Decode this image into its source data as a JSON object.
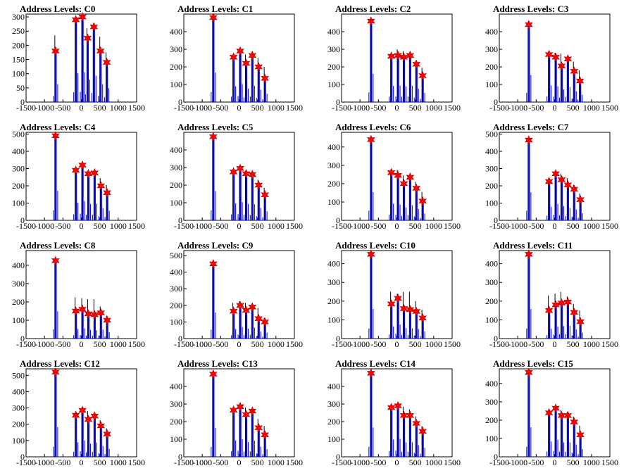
{
  "figure": {
    "title_prefix": "Address Levels: "
  },
  "style": {
    "series_color": "#0000ff",
    "outline_color": "#000000",
    "marker_color": "#ff0000"
  },
  "chart_data": [
    {
      "title": "Address Levels: C0",
      "type": "bar",
      "xlim": [
        -1500,
        1500
      ],
      "ylim": [
        0,
        310
      ],
      "xticks": [
        -1500,
        -1000,
        -500,
        0,
        500,
        1000,
        1500
      ],
      "yticks": [
        0,
        50,
        100,
        150,
        200,
        250,
        300
      ],
      "ytick_labels": [
        "0",
        "50",
        "100",
        "150",
        "200",
        "250",
        "300"
      ],
      "peaks": [
        {
          "x": -700,
          "y": 235,
          "marker": 180
        },
        {
          "x": -150,
          "y": 290,
          "marker": 290
        },
        {
          "x": 30,
          "y": 305,
          "marker": 300
        },
        {
          "x": 170,
          "y": 260,
          "marker": 225
        },
        {
          "x": 340,
          "y": 255,
          "marker": 265
        },
        {
          "x": 520,
          "y": 230,
          "marker": 180
        },
        {
          "x": 690,
          "y": 175,
          "marker": 140
        }
      ]
    },
    {
      "title": "Address Levels: C1",
      "type": "bar",
      "xlim": [
        -1500,
        1500
      ],
      "ylim": [
        0,
        500
      ],
      "xticks": [
        -1500,
        -1000,
        -500,
        0,
        500,
        1000,
        1500
      ],
      "yticks": [
        0,
        100,
        200,
        300,
        400
      ],
      "ytick_labels": [
        "0",
        "100",
        "200",
        "300",
        "400"
      ],
      "peaks": [
        {
          "x": -700,
          "y": 480,
          "marker": 480
        },
        {
          "x": -150,
          "y": 260,
          "marker": 255
        },
        {
          "x": 30,
          "y": 295,
          "marker": 290
        },
        {
          "x": 190,
          "y": 270,
          "marker": 220
        },
        {
          "x": 360,
          "y": 265,
          "marker": 265
        },
        {
          "x": 530,
          "y": 250,
          "marker": 200
        },
        {
          "x": 700,
          "y": 200,
          "marker": 135
        }
      ]
    },
    {
      "title": "Address Levels: C2",
      "type": "bar",
      "xlim": [
        -1500,
        1500
      ],
      "ylim": [
        0,
        500
      ],
      "xticks": [
        -1500,
        -1000,
        -500,
        0,
        500,
        1000,
        1500
      ],
      "yticks": [
        0,
        100,
        200,
        300,
        400
      ],
      "ytick_labels": [
        "0",
        "100",
        "200",
        "300",
        "400"
      ],
      "peaks": [
        {
          "x": -700,
          "y": 460,
          "marker": 460
        },
        {
          "x": -150,
          "y": 270,
          "marker": 260
        },
        {
          "x": 30,
          "y": 300,
          "marker": 265
        },
        {
          "x": 190,
          "y": 290,
          "marker": 255
        },
        {
          "x": 360,
          "y": 275,
          "marker": 265
        },
        {
          "x": 530,
          "y": 235,
          "marker": 215
        },
        {
          "x": 700,
          "y": 195,
          "marker": 150
        }
      ]
    },
    {
      "title": "Address Levels: C3",
      "type": "bar",
      "xlim": [
        -1500,
        1500
      ],
      "ylim": [
        0,
        500
      ],
      "xticks": [
        -1500,
        -1000,
        -500,
        0,
        500,
        1000,
        1500
      ],
      "yticks": [
        0,
        100,
        200,
        300,
        400
      ],
      "ytick_labels": [
        "0",
        "100",
        "200",
        "300",
        "400"
      ],
      "peaks": [
        {
          "x": -700,
          "y": 440,
          "marker": 440
        },
        {
          "x": -150,
          "y": 275,
          "marker": 270
        },
        {
          "x": 30,
          "y": 280,
          "marker": 255
        },
        {
          "x": 190,
          "y": 275,
          "marker": 205
        },
        {
          "x": 360,
          "y": 255,
          "marker": 245
        },
        {
          "x": 530,
          "y": 230,
          "marker": 175
        },
        {
          "x": 690,
          "y": 180,
          "marker": 120
        }
      ]
    },
    {
      "title": "Address Levels: C4",
      "type": "bar",
      "xlim": [
        -1500,
        1500
      ],
      "ylim": [
        0,
        510
      ],
      "xticks": [
        -1500,
        -1000,
        -500,
        0,
        500,
        1000,
        1500
      ],
      "yticks": [
        0,
        100,
        200,
        300,
        400,
        500
      ],
      "ytick_labels": [
        "0",
        "100",
        "200",
        "300",
        "400",
        "500"
      ],
      "peaks": [
        {
          "x": -700,
          "y": 490,
          "marker": 490
        },
        {
          "x": -150,
          "y": 290,
          "marker": 290
        },
        {
          "x": 30,
          "y": 325,
          "marker": 320
        },
        {
          "x": 190,
          "y": 280,
          "marker": 270
        },
        {
          "x": 360,
          "y": 285,
          "marker": 275
        },
        {
          "x": 530,
          "y": 245,
          "marker": 200
        },
        {
          "x": 700,
          "y": 205,
          "marker": 160
        }
      ]
    },
    {
      "title": "Address Levels: C5",
      "type": "bar",
      "xlim": [
        -1500,
        1500
      ],
      "ylim": [
        0,
        500
      ],
      "xticks": [
        -1500,
        -1000,
        -500,
        0,
        500,
        1000,
        1500
      ],
      "yticks": [
        0,
        100,
        200,
        300,
        400
      ],
      "ytick_labels": [
        "0",
        "100",
        "200",
        "300",
        "400"
      ],
      "peaks": [
        {
          "x": -700,
          "y": 475,
          "marker": 475
        },
        {
          "x": -150,
          "y": 285,
          "marker": 275
        },
        {
          "x": 30,
          "y": 305,
          "marker": 295
        },
        {
          "x": 190,
          "y": 275,
          "marker": 265
        },
        {
          "x": 360,
          "y": 275,
          "marker": 260
        },
        {
          "x": 530,
          "y": 230,
          "marker": 200
        },
        {
          "x": 700,
          "y": 185,
          "marker": 145
        }
      ]
    },
    {
      "title": "Address Levels: C6",
      "type": "bar",
      "xlim": [
        -1500,
        1500
      ],
      "ylim": [
        0,
        480
      ],
      "xticks": [
        -1500,
        -1000,
        -500,
        0,
        500,
        1000,
        1500
      ],
      "yticks": [
        0,
        100,
        200,
        300,
        400
      ],
      "ytick_labels": [
        "0",
        "100",
        "200",
        "300",
        "400"
      ],
      "peaks": [
        {
          "x": -700,
          "y": 440,
          "marker": 440
        },
        {
          "x": -150,
          "y": 265,
          "marker": 260
        },
        {
          "x": 30,
          "y": 275,
          "marker": 245
        },
        {
          "x": 190,
          "y": 245,
          "marker": 200
        },
        {
          "x": 360,
          "y": 245,
          "marker": 235
        },
        {
          "x": 530,
          "y": 210,
          "marker": 175
        },
        {
          "x": 700,
          "y": 155,
          "marker": 105
        }
      ]
    },
    {
      "title": "Address Levels: C7",
      "type": "bar",
      "xlim": [
        -1500,
        1500
      ],
      "ylim": [
        0,
        510
      ],
      "xticks": [
        -1500,
        -1000,
        -500,
        0,
        500,
        1000,
        1500
      ],
      "yticks": [
        0,
        100,
        200,
        300,
        400,
        500
      ],
      "ytick_labels": [
        "0",
        "100",
        "200",
        "300",
        "400",
        "500"
      ],
      "peaks": [
        {
          "x": -700,
          "y": 465,
          "marker": 465
        },
        {
          "x": -150,
          "y": 240,
          "marker": 225
        },
        {
          "x": 30,
          "y": 275,
          "marker": 270
        },
        {
          "x": 190,
          "y": 270,
          "marker": 235
        },
        {
          "x": 360,
          "y": 245,
          "marker": 205
        },
        {
          "x": 530,
          "y": 205,
          "marker": 180
        },
        {
          "x": 700,
          "y": 155,
          "marker": 120
        }
      ]
    },
    {
      "title": "Address Levels: C8",
      "type": "bar",
      "xlim": [
        -1500,
        1500
      ],
      "ylim": [
        0,
        480
      ],
      "xticks": [
        -1500,
        -1000,
        -500,
        0,
        500,
        1000,
        1500
      ],
      "yticks": [
        0,
        100,
        200,
        300,
        400
      ],
      "ytick_labels": [
        "0",
        "100",
        "200",
        "300",
        "400"
      ],
      "peaks": [
        {
          "x": -700,
          "y": 425,
          "marker": 425
        },
        {
          "x": -150,
          "y": 225,
          "marker": 150
        },
        {
          "x": 30,
          "y": 220,
          "marker": 160
        },
        {
          "x": 190,
          "y": 215,
          "marker": 135
        },
        {
          "x": 360,
          "y": 215,
          "marker": 130
        },
        {
          "x": 530,
          "y": 175,
          "marker": 140
        },
        {
          "x": 700,
          "y": 125,
          "marker": 100
        }
      ]
    },
    {
      "title": "Address Levels: C9",
      "type": "bar",
      "xlim": [
        -1500,
        1500
      ],
      "ylim": [
        0,
        530
      ],
      "xticks": [
        -1500,
        -1000,
        -500,
        0,
        500,
        1000,
        1500
      ],
      "yticks": [
        0,
        100,
        200,
        300,
        400,
        500
      ],
      "ytick_labels": [
        "0",
        "100",
        "200",
        "300",
        "400",
        "500"
      ],
      "peaks": [
        {
          "x": -700,
          "y": 450,
          "marker": 450
        },
        {
          "x": -150,
          "y": 215,
          "marker": 165
        },
        {
          "x": 30,
          "y": 225,
          "marker": 200
        },
        {
          "x": 190,
          "y": 215,
          "marker": 170
        },
        {
          "x": 360,
          "y": 210,
          "marker": 190
        },
        {
          "x": 530,
          "y": 185,
          "marker": 120
        },
        {
          "x": 700,
          "y": 125,
          "marker": 100
        }
      ]
    },
    {
      "title": "Address Levels: C10",
      "type": "bar",
      "xlim": [
        -1500,
        1500
      ],
      "ylim": [
        0,
        470
      ],
      "xticks": [
        -1500,
        -1000,
        -500,
        0,
        500,
        1000,
        1500
      ],
      "yticks": [
        0,
        100,
        200,
        300,
        400
      ],
      "ytick_labels": [
        "0",
        "100",
        "200",
        "300",
        "400"
      ],
      "peaks": [
        {
          "x": -700,
          "y": 450,
          "marker": 450
        },
        {
          "x": -150,
          "y": 250,
          "marker": 185
        },
        {
          "x": 30,
          "y": 240,
          "marker": 215
        },
        {
          "x": 190,
          "y": 250,
          "marker": 160
        },
        {
          "x": 360,
          "y": 250,
          "marker": 155
        },
        {
          "x": 530,
          "y": 200,
          "marker": 145
        },
        {
          "x": 700,
          "y": 155,
          "marker": 110
        }
      ]
    },
    {
      "title": "Address Levels: C11",
      "type": "bar",
      "xlim": [
        -1500,
        1500
      ],
      "ylim": [
        0,
        470
      ],
      "xticks": [
        -1500,
        -1000,
        -500,
        0,
        500,
        1000,
        1500
      ],
      "yticks": [
        0,
        100,
        200,
        300,
        400
      ],
      "ytick_labels": [
        "0",
        "100",
        "200",
        "300",
        "400"
      ],
      "peaks": [
        {
          "x": -700,
          "y": 450,
          "marker": 450
        },
        {
          "x": -150,
          "y": 230,
          "marker": 150
        },
        {
          "x": 30,
          "y": 240,
          "marker": 180
        },
        {
          "x": 190,
          "y": 250,
          "marker": 190
        },
        {
          "x": 360,
          "y": 225,
          "marker": 195
        },
        {
          "x": 530,
          "y": 185,
          "marker": 140
        },
        {
          "x": 700,
          "y": 150,
          "marker": 90
        }
      ]
    },
    {
      "title": "Address Levels: C12",
      "type": "bar",
      "xlim": [
        -1500,
        1500
      ],
      "ylim": [
        0,
        540
      ],
      "xticks": [
        -1500,
        -1000,
        -500,
        0,
        500,
        1000,
        1500
      ],
      "yticks": [
        0,
        100,
        200,
        300,
        400,
        500
      ],
      "ytick_labels": [
        "0",
        "100",
        "200",
        "300",
        "400",
        "500"
      ],
      "peaks": [
        {
          "x": -700,
          "y": 520,
          "marker": 520
        },
        {
          "x": -150,
          "y": 270,
          "marker": 255
        },
        {
          "x": 30,
          "y": 295,
          "marker": 285
        },
        {
          "x": 190,
          "y": 280,
          "marker": 230
        },
        {
          "x": 360,
          "y": 270,
          "marker": 250
        },
        {
          "x": 530,
          "y": 225,
          "marker": 190
        },
        {
          "x": 700,
          "y": 175,
          "marker": 140
        }
      ]
    },
    {
      "title": "Address Levels: C13",
      "type": "bar",
      "xlim": [
        -1500,
        1500
      ],
      "ylim": [
        0,
        500
      ],
      "xticks": [
        -1500,
        -1000,
        -500,
        0,
        500,
        1000,
        1500
      ],
      "yticks": [
        0,
        100,
        200,
        300,
        400
      ],
      "ytick_labels": [
        "0",
        "100",
        "200",
        "300",
        "400"
      ],
      "peaks": [
        {
          "x": -700,
          "y": 470,
          "marker": 470
        },
        {
          "x": -150,
          "y": 275,
          "marker": 265
        },
        {
          "x": 30,
          "y": 290,
          "marker": 285
        },
        {
          "x": 190,
          "y": 280,
          "marker": 240
        },
        {
          "x": 360,
          "y": 265,
          "marker": 260
        },
        {
          "x": 530,
          "y": 215,
          "marker": 165
        },
        {
          "x": 700,
          "y": 175,
          "marker": 125
        }
      ]
    },
    {
      "title": "Address Levels: C14",
      "type": "bar",
      "xlim": [
        -1500,
        1500
      ],
      "ylim": [
        0,
        500
      ],
      "xticks": [
        -1500,
        -1000,
        -500,
        0,
        500,
        1000,
        1500
      ],
      "yticks": [
        0,
        100,
        200,
        300,
        400
      ],
      "ytick_labels": [
        "0",
        "100",
        "200",
        "300",
        "400"
      ],
      "peaks": [
        {
          "x": -700,
          "y": 475,
          "marker": 475
        },
        {
          "x": -150,
          "y": 285,
          "marker": 280
        },
        {
          "x": 30,
          "y": 300,
          "marker": 290
        },
        {
          "x": 190,
          "y": 285,
          "marker": 235
        },
        {
          "x": 360,
          "y": 270,
          "marker": 235
        },
        {
          "x": 530,
          "y": 230,
          "marker": 190
        },
        {
          "x": 700,
          "y": 175,
          "marker": 145
        }
      ]
    },
    {
      "title": "Address Levels: C15",
      "type": "bar",
      "xlim": [
        -1500,
        1500
      ],
      "ylim": [
        0,
        480
      ],
      "xticks": [
        -1500,
        -1000,
        -500,
        0,
        500,
        1000,
        1500
      ],
      "yticks": [
        0,
        100,
        200,
        300,
        400
      ],
      "ytick_labels": [
        "0",
        "100",
        "200",
        "300",
        "400"
      ],
      "peaks": [
        {
          "x": -700,
          "y": 460,
          "marker": 460
        },
        {
          "x": -150,
          "y": 250,
          "marker": 240
        },
        {
          "x": 30,
          "y": 275,
          "marker": 265
        },
        {
          "x": 190,
          "y": 255,
          "marker": 225
        },
        {
          "x": 360,
          "y": 245,
          "marker": 225
        },
        {
          "x": 530,
          "y": 220,
          "marker": 190
        },
        {
          "x": 700,
          "y": 170,
          "marker": 120
        }
      ]
    }
  ]
}
